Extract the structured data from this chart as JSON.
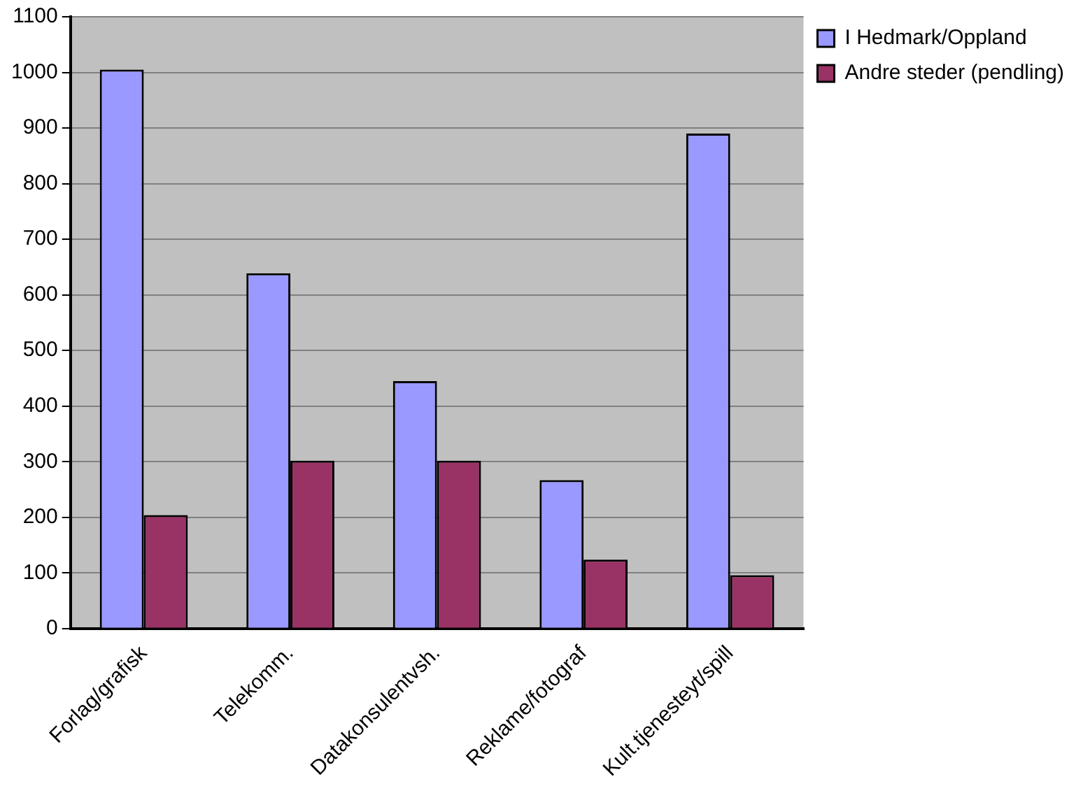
{
  "chart_data": {
    "type": "bar",
    "categories": [
      "Forlag/grafisk",
      "Telekomm.",
      "Datakonsulentvsh.",
      "Reklame/fotograf",
      "Kult.tjenesteyt/spill"
    ],
    "series": [
      {
        "name": "I Hedmark/Oppland",
        "color": "#9999ff",
        "values": [
          1005,
          639,
          445,
          267,
          890
        ]
      },
      {
        "name": "Andre steder (pendling)",
        "color": "#993366",
        "values": [
          204,
          302,
          302,
          124,
          96
        ]
      }
    ],
    "ylim": [
      0,
      1100
    ],
    "yticks": [
      0,
      100,
      200,
      300,
      400,
      500,
      600,
      700,
      800,
      900,
      1000,
      1100
    ],
    "grid": "y",
    "legend": "top right"
  }
}
